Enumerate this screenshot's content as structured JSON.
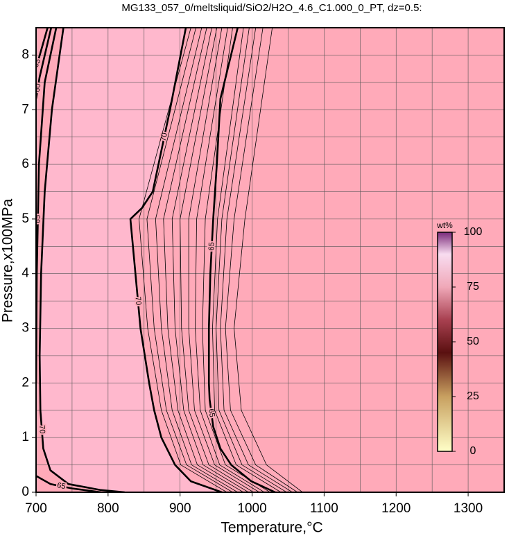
{
  "chart_data": {
    "type": "contour",
    "title": "MG133_057_0/meltsliquid/SiO2/H2O_4.6_C1.000_0_PT, dz=0.5:",
    "x_label": "Temperature,°C",
    "y_label": "Pressure,x100MPa",
    "xlim": [
      700,
      1350
    ],
    "ylim": [
      0,
      8.5
    ],
    "xticks": [
      700,
      800,
      900,
      1000,
      1100,
      1200,
      1300
    ],
    "yticks": [
      0,
      1,
      2,
      3,
      4,
      5,
      6,
      7,
      8
    ],
    "xminor": [
      750,
      850,
      950,
      1050,
      1150,
      1250
    ],
    "yminor": [
      0.5,
      1.5,
      2.5,
      3.5,
      4.5,
      5.5,
      6.5,
      7.5
    ],
    "grid": true,
    "field_color": "#ffaab9",
    "high_color": "#ffb8cd",
    "line_color": "#000000",
    "contours": [
      {
        "level": 70,
        "major": true,
        "x": [
          738,
          722,
          712,
          707,
          705,
          706,
          710,
          720,
          745,
          790,
          823
        ],
        "y": [
          8.5,
          7,
          5.5,
          4,
          2.5,
          1.5,
          0.8,
          0.4,
          0.15,
          0.04,
          0
        ]
      },
      {
        "level": 65,
        "major": true,
        "x": [
          728,
          712,
          704,
          701,
          700
        ],
        "y": [
          8.5,
          7.5,
          6,
          4,
          2
        ]
      },
      {
        "level": 60,
        "major": true,
        "x": [
          721,
          705,
          700
        ],
        "y": [
          8.5,
          7.6,
          7.2
        ]
      },
      {
        "level": 55,
        "major": true,
        "x": [
          716,
          703,
          700
        ],
        "y": [
          8.5,
          7.9,
          7.8
        ]
      },
      {
        "level": 65,
        "major": true,
        "x": [
          700,
          720,
          750,
          790
        ],
        "y": [
          0.3,
          0.15,
          0.07,
          0
        ]
      },
      {
        "level": 70,
        "major": true,
        "x": [
          908,
          886,
          870,
          862,
          847,
          831,
          838,
          845,
          857,
          864,
          874,
          893,
          915,
          958
        ],
        "y": [
          8.5,
          7,
          6,
          5.5,
          5.2,
          5,
          4,
          3,
          2,
          1.5,
          1,
          0.5,
          0.2,
          0
        ]
      },
      {
        "level": 65,
        "major": true,
        "x": [
          980,
          956,
          951,
          946,
          942,
          940,
          940,
          941,
          946,
          956,
          971,
          999,
          1032
        ],
        "y": [
          8.5,
          7.2,
          6,
          5,
          4,
          3,
          2,
          1.7,
          1.2,
          0.8,
          0.5,
          0.2,
          0
        ]
      },
      {
        "level": 69.5,
        "major": false,
        "x": [
          915,
          843,
          855,
          874,
          901,
          965
        ],
        "y": [
          8.5,
          5,
          3,
          1.5,
          0.5,
          0
        ]
      },
      {
        "level": 69,
        "major": false,
        "x": [
          922,
          854,
          864,
          881,
          909,
          973
        ],
        "y": [
          8.5,
          5,
          3,
          1.5,
          0.5,
          0
        ]
      },
      {
        "level": 68.5,
        "major": false,
        "x": [
          930,
          866,
          874,
          889,
          916,
          980
        ],
        "y": [
          8.5,
          5,
          3,
          1.5,
          0.5,
          0
        ]
      },
      {
        "level": 68,
        "major": false,
        "x": [
          937,
          877,
          883,
          897,
          924,
          988
        ],
        "y": [
          8.5,
          5,
          3,
          1.5,
          0.5,
          0
        ]
      },
      {
        "level": 67.5,
        "major": false,
        "x": [
          944,
          889,
          893,
          905,
          932,
          995
        ],
        "y": [
          8.5,
          5,
          3,
          1.5,
          0.5,
          0
        ]
      },
      {
        "level": 67,
        "major": false,
        "x": [
          951,
          900,
          902,
          912,
          940,
          1002
        ],
        "y": [
          8.5,
          5,
          3,
          1.5,
          0.5,
          0
        ]
      },
      {
        "level": 66.5,
        "major": false,
        "x": [
          958,
          912,
          912,
          920,
          948,
          1010
        ],
        "y": [
          8.5,
          5,
          3,
          1.5,
          0.5,
          0
        ]
      },
      {
        "level": 66,
        "major": false,
        "x": [
          966,
          923,
          921,
          928,
          955,
          1017
        ],
        "y": [
          8.5,
          5,
          3,
          1.5,
          0.5,
          0
        ]
      },
      {
        "level": 65.5,
        "major": false,
        "x": [
          973,
          935,
          931,
          935,
          963,
          1025
        ],
        "y": [
          8.5,
          5,
          3,
          1.5,
          0.5,
          0
        ]
      },
      {
        "level": 64.5,
        "major": false,
        "x": [
          988,
          952,
          945,
          948,
          978,
          1040
        ],
        "y": [
          8.5,
          5,
          3,
          1.5,
          0.5,
          0
        ]
      },
      {
        "level": 64,
        "major": false,
        "x": [
          996,
          958,
          950,
          954,
          986,
          1048
        ],
        "y": [
          8.5,
          5,
          3,
          1.5,
          0.5,
          0
        ]
      },
      {
        "level": 63.5,
        "major": false,
        "x": [
          1005,
          965,
          956,
          961,
          995,
          1056
        ],
        "y": [
          8.5,
          5,
          3,
          1.5,
          0.5,
          0
        ]
      },
      {
        "level": 63,
        "major": false,
        "x": [
          1015,
          975,
          963,
          970,
          1005,
          1063
        ],
        "y": [
          8.5,
          5,
          3,
          1.5,
          0.5,
          0
        ]
      },
      {
        "level": 62.5,
        "major": false,
        "x": [
          1028,
          990,
          975,
          985,
          1020,
          1070
        ],
        "y": [
          8.5,
          5,
          3,
          1.5,
          0.5,
          0
        ]
      }
    ],
    "colorbar": {
      "label": "wt%",
      "lim": [
        0,
        100
      ],
      "ticks": [
        0,
        25,
        50,
        75,
        100
      ],
      "stops": [
        {
          "value": 0,
          "color": "#ffffc8"
        },
        {
          "value": 25,
          "color": "#c8a060"
        },
        {
          "value": 45,
          "color": "#5a1010"
        },
        {
          "value": 60,
          "color": "#a84050"
        },
        {
          "value": 75,
          "color": "#f0a8b8"
        },
        {
          "value": 90,
          "color": "#f8dcf0"
        },
        {
          "value": 100,
          "color": "#7a2a7a"
        }
      ]
    }
  }
}
